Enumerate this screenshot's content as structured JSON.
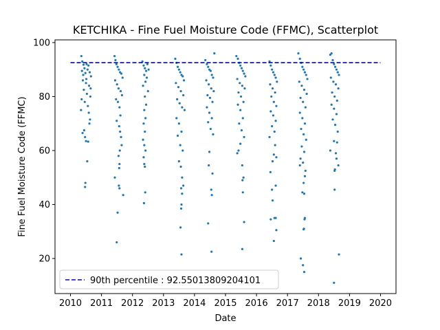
{
  "chart_data": {
    "type": "scatter",
    "title": "KETCHIKA - Fine Fuel Moisture Code (FFMC), Scatterplot",
    "xlabel": "Date",
    "ylabel": "Fine Fuel Moisture Code (FFMC)",
    "xlim": [
      2009.5,
      2020.5
    ],
    "ylim": [
      7,
      101
    ],
    "xticks": [
      2010,
      2011,
      2012,
      2013,
      2014,
      2015,
      2016,
      2017,
      2018,
      2019,
      2020
    ],
    "xtick_labels": [
      "2010",
      "2011",
      "2012",
      "2013",
      "2014",
      "2015",
      "2016",
      "2017",
      "2018",
      "2019",
      "2020"
    ],
    "yticks": [
      20,
      40,
      60,
      80,
      100
    ],
    "ytick_labels": [
      "20",
      "40",
      "60",
      "80",
      "100"
    ],
    "point_color": "#1f77b4",
    "reference_line": {
      "label": "90th percentile : 92.55013809204101",
      "value": 92.55,
      "x_range": [
        2010.0,
        2020.0
      ],
      "color": "#0000cc",
      "style": "dashed"
    },
    "legend": {
      "position": "bottom-left"
    },
    "points": [
      [
        2010.35,
        95.0
      ],
      [
        2010.38,
        93.0
      ],
      [
        2010.42,
        91.8
      ],
      [
        2010.45,
        90.5
      ],
      [
        2010.37,
        89.5
      ],
      [
        2010.48,
        88.7
      ],
      [
        2010.52,
        92.0
      ],
      [
        2010.55,
        90.0
      ],
      [
        2010.58,
        91.5
      ],
      [
        2010.62,
        89.0
      ],
      [
        2010.66,
        87.5
      ],
      [
        2010.4,
        86.0
      ],
      [
        2010.5,
        85.0
      ],
      [
        2010.6,
        84.0
      ],
      [
        2010.43,
        82.5
      ],
      [
        2010.53,
        81.0
      ],
      [
        2010.64,
        80.0
      ],
      [
        2010.36,
        79.0
      ],
      [
        2010.46,
        78.0
      ],
      [
        2010.56,
        76.5
      ],
      [
        2010.34,
        75.0
      ],
      [
        2010.59,
        74.0
      ],
      [
        2010.63,
        71.5
      ],
      [
        2010.61,
        70.0
      ],
      [
        2010.44,
        67.5
      ],
      [
        2010.39,
        66.5
      ],
      [
        2010.47,
        65.0
      ],
      [
        2010.5,
        63.5
      ],
      [
        2010.57,
        63.3
      ],
      [
        2010.54,
        56.0
      ],
      [
        2010.48,
        48.0
      ],
      [
        2010.47,
        46.5
      ],
      [
        2010.41,
        88.0
      ],
      [
        2010.51,
        86.5
      ],
      [
        2010.65,
        83.0
      ],
      [
        2011.42,
        95.0
      ],
      [
        2011.45,
        93.5
      ],
      [
        2011.48,
        92.0
      ],
      [
        2011.52,
        91.0
      ],
      [
        2011.56,
        90.0
      ],
      [
        2011.6,
        89.0
      ],
      [
        2011.64,
        88.5
      ],
      [
        2011.68,
        87.0
      ],
      [
        2011.44,
        86.0
      ],
      [
        2011.5,
        84.5
      ],
      [
        2011.55,
        83.0
      ],
      [
        2011.62,
        82.0
      ],
      [
        2011.66,
        80.5
      ],
      [
        2011.47,
        79.0
      ],
      [
        2011.53,
        78.0
      ],
      [
        2011.58,
        76.0
      ],
      [
        2011.61,
        73.0
      ],
      [
        2011.49,
        71.0
      ],
      [
        2011.57,
        69.0
      ],
      [
        2011.6,
        67.0
      ],
      [
        2011.63,
        65.0
      ],
      [
        2011.65,
        62.0
      ],
      [
        2011.59,
        60.0
      ],
      [
        2011.55,
        58.0
      ],
      [
        2011.58,
        55.0
      ],
      [
        2011.57,
        53.5
      ],
      [
        2011.43,
        50.0
      ],
      [
        2011.56,
        47.0
      ],
      [
        2011.58,
        46.0
      ],
      [
        2011.7,
        43.5
      ],
      [
        2011.52,
        37.0
      ],
      [
        2011.49,
        26.0
      ],
      [
        2012.32,
        93.0
      ],
      [
        2012.36,
        91.5
      ],
      [
        2012.4,
        90.5
      ],
      [
        2012.44,
        89.5
      ],
      [
        2012.48,
        92.0
      ],
      [
        2012.52,
        90.0
      ],
      [
        2012.38,
        88.0
      ],
      [
        2012.46,
        87.0
      ],
      [
        2012.42,
        85.5
      ],
      [
        2012.34,
        84.0
      ],
      [
        2012.5,
        82.0
      ],
      [
        2012.4,
        80.0
      ],
      [
        2012.44,
        77.0
      ],
      [
        2012.38,
        75.0
      ],
      [
        2012.42,
        72.0
      ],
      [
        2012.36,
        70.0
      ],
      [
        2012.4,
        67.0
      ],
      [
        2012.34,
        64.0
      ],
      [
        2012.38,
        62.0
      ],
      [
        2012.42,
        60.0
      ],
      [
        2012.36,
        57.5
      ],
      [
        2012.38,
        55.0
      ],
      [
        2012.4,
        54.0
      ],
      [
        2012.41,
        44.5
      ],
      [
        2012.37,
        40.5
      ],
      [
        2013.38,
        94.0
      ],
      [
        2013.42,
        92.5
      ],
      [
        2013.46,
        91.0
      ],
      [
        2013.5,
        90.0
      ],
      [
        2013.54,
        89.0
      ],
      [
        2013.58,
        88.0
      ],
      [
        2013.62,
        87.5
      ],
      [
        2013.66,
        86.0
      ],
      [
        2013.4,
        85.0
      ],
      [
        2013.48,
        83.5
      ],
      [
        2013.56,
        82.0
      ],
      [
        2013.64,
        80.5
      ],
      [
        2013.44,
        79.0
      ],
      [
        2013.52,
        77.5
      ],
      [
        2013.6,
        76.0
      ],
      [
        2013.68,
        75.0
      ],
      [
        2013.42,
        72.0
      ],
      [
        2013.5,
        70.0
      ],
      [
        2013.58,
        67.0
      ],
      [
        2013.46,
        65.5
      ],
      [
        2013.54,
        62.0
      ],
      [
        2013.62,
        60.0
      ],
      [
        2013.5,
        56.0
      ],
      [
        2013.56,
        54.0
      ],
      [
        2013.6,
        50.0
      ],
      [
        2013.64,
        47.0
      ],
      [
        2013.57,
        46.0
      ],
      [
        2013.6,
        44.0
      ],
      [
        2013.58,
        40.0
      ],
      [
        2013.57,
        38.5
      ],
      [
        2013.55,
        31.5
      ],
      [
        2013.58,
        21.5
      ],
      [
        2014.35,
        93.5
      ],
      [
        2014.4,
        92.0
      ],
      [
        2014.44,
        91.0
      ],
      [
        2014.48,
        90.0
      ],
      [
        2014.52,
        89.5
      ],
      [
        2014.56,
        88.0
      ],
      [
        2014.6,
        87.0
      ],
      [
        2014.64,
        96.0
      ],
      [
        2014.38,
        86.0
      ],
      [
        2014.46,
        84.5
      ],
      [
        2014.54,
        83.0
      ],
      [
        2014.62,
        82.0
      ],
      [
        2014.42,
        80.5
      ],
      [
        2014.5,
        79.5
      ],
      [
        2014.58,
        78.0
      ],
      [
        2014.4,
        76.0
      ],
      [
        2014.48,
        74.0
      ],
      [
        2014.56,
        72.0
      ],
      [
        2014.44,
        70.5
      ],
      [
        2014.52,
        68.0
      ],
      [
        2014.6,
        66.0
      ],
      [
        2014.48,
        59.5
      ],
      [
        2014.46,
        54.5
      ],
      [
        2014.58,
        51.5
      ],
      [
        2014.54,
        45.5
      ],
      [
        2014.56,
        43.5
      ],
      [
        2014.44,
        33.0
      ],
      [
        2014.55,
        22.5
      ],
      [
        2015.35,
        95.0
      ],
      [
        2015.4,
        94.0
      ],
      [
        2015.44,
        92.5
      ],
      [
        2015.48,
        91.5
      ],
      [
        2015.52,
        90.5
      ],
      [
        2015.56,
        89.5
      ],
      [
        2015.6,
        88.5
      ],
      [
        2015.64,
        87.5
      ],
      [
        2015.38,
        86.5
      ],
      [
        2015.46,
        85.0
      ],
      [
        2015.54,
        84.0
      ],
      [
        2015.62,
        83.0
      ],
      [
        2015.42,
        81.5
      ],
      [
        2015.5,
        80.0
      ],
      [
        2015.58,
        78.0
      ],
      [
        2015.4,
        77.0
      ],
      [
        2015.48,
        75.0
      ],
      [
        2015.56,
        72.0
      ],
      [
        2015.44,
        70.0
      ],
      [
        2015.52,
        67.5
      ],
      [
        2015.6,
        65.0
      ],
      [
        2015.48,
        62.5
      ],
      [
        2015.42,
        60.0
      ],
      [
        2015.38,
        59.0
      ],
      [
        2015.54,
        54.5
      ],
      [
        2015.58,
        50.0
      ],
      [
        2015.55,
        49.0
      ],
      [
        2015.56,
        44.5
      ],
      [
        2015.6,
        33.5
      ],
      [
        2015.54,
        23.5
      ],
      [
        2016.42,
        93.0
      ],
      [
        2016.46,
        91.5
      ],
      [
        2016.5,
        90.0
      ],
      [
        2016.54,
        89.0
      ],
      [
        2016.58,
        88.0
      ],
      [
        2016.62,
        87.0
      ],
      [
        2016.66,
        85.5
      ],
      [
        2016.44,
        84.5
      ],
      [
        2016.52,
        83.0
      ],
      [
        2016.6,
        81.5
      ],
      [
        2016.48,
        80.0
      ],
      [
        2016.56,
        78.0
      ],
      [
        2016.64,
        76.5
      ],
      [
        2016.46,
        74.5
      ],
      [
        2016.54,
        73.0
      ],
      [
        2016.62,
        71.0
      ],
      [
        2016.5,
        69.0
      ],
      [
        2016.58,
        67.0
      ],
      [
        2016.42,
        65.0
      ],
      [
        2016.6,
        62.0
      ],
      [
        2016.56,
        58.5
      ],
      [
        2016.64,
        57.5
      ],
      [
        2016.52,
        56.0
      ],
      [
        2016.45,
        52.0
      ],
      [
        2016.5,
        45.5
      ],
      [
        2016.62,
        47.0
      ],
      [
        2016.52,
        41.5
      ],
      [
        2016.58,
        35.0
      ],
      [
        2016.62,
        35.0
      ],
      [
        2016.46,
        34.5
      ],
      [
        2016.64,
        30.5
      ],
      [
        2016.56,
        26.5
      ],
      [
        2017.35,
        96.0
      ],
      [
        2017.4,
        94.0
      ],
      [
        2017.44,
        92.5
      ],
      [
        2017.48,
        91.0
      ],
      [
        2017.52,
        90.0
      ],
      [
        2017.56,
        89.0
      ],
      [
        2017.6,
        88.0
      ],
      [
        2017.64,
        86.5
      ],
      [
        2017.38,
        85.5
      ],
      [
        2017.46,
        84.0
      ],
      [
        2017.54,
        82.5
      ],
      [
        2017.62,
        81.0
      ],
      [
        2017.42,
        79.5
      ],
      [
        2017.5,
        78.0
      ],
      [
        2017.58,
        76.0
      ],
      [
        2017.4,
        74.0
      ],
      [
        2017.48,
        72.0
      ],
      [
        2017.56,
        70.0
      ],
      [
        2017.44,
        68.0
      ],
      [
        2017.52,
        66.0
      ],
      [
        2017.6,
        64.0
      ],
      [
        2017.46,
        61.5
      ],
      [
        2017.54,
        59.5
      ],
      [
        2017.42,
        57.0
      ],
      [
        2017.5,
        55.5
      ],
      [
        2017.4,
        54.5
      ],
      [
        2017.58,
        52.5
      ],
      [
        2017.56,
        50.5
      ],
      [
        2017.52,
        48.0
      ],
      [
        2017.48,
        44.5
      ],
      [
        2017.54,
        44.0
      ],
      [
        2017.56,
        35.0
      ],
      [
        2017.55,
        34.5
      ],
      [
        2017.53,
        31.0
      ],
      [
        2017.52,
        30.8
      ],
      [
        2017.43,
        20.0
      ],
      [
        2017.5,
        17.5
      ],
      [
        2017.54,
        15.0
      ],
      [
        2018.38,
        95.5
      ],
      [
        2018.42,
        96.0
      ],
      [
        2018.46,
        93.5
      ],
      [
        2018.5,
        92.0
      ],
      [
        2018.54,
        91.0
      ],
      [
        2018.58,
        90.0
      ],
      [
        2018.62,
        89.0
      ],
      [
        2018.66,
        88.0
      ],
      [
        2018.4,
        87.0
      ],
      [
        2018.48,
        85.5
      ],
      [
        2018.56,
        84.5
      ],
      [
        2018.64,
        83.0
      ],
      [
        2018.44,
        81.5
      ],
      [
        2018.52,
        80.0
      ],
      [
        2018.6,
        78.5
      ],
      [
        2018.42,
        77.0
      ],
      [
        2018.5,
        75.5
      ],
      [
        2018.58,
        73.5
      ],
      [
        2018.46,
        71.5
      ],
      [
        2018.54,
        69.5
      ],
      [
        2018.62,
        67.0
      ],
      [
        2018.5,
        63.5
      ],
      [
        2018.56,
        59.0
      ],
      [
        2018.58,
        57.0
      ],
      [
        2018.6,
        63.0
      ],
      [
        2018.38,
        60.0
      ],
      [
        2018.64,
        54.5
      ],
      [
        2018.52,
        52.5
      ],
      [
        2018.53,
        53.0
      ],
      [
        2018.52,
        45.5
      ],
      [
        2018.66,
        21.5
      ],
      [
        2018.5,
        11.0
      ]
    ]
  }
}
